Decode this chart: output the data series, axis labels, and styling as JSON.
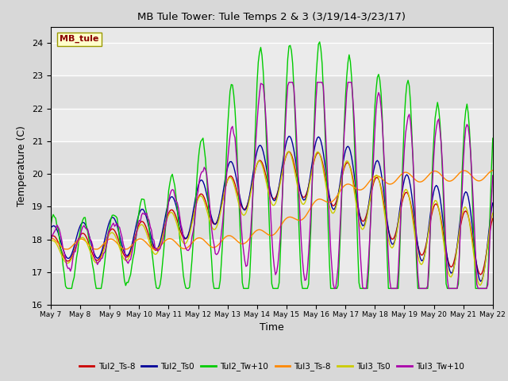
{
  "title": "MB Tule Tower: Tule Temps 2 & 3 (3/19/14-3/23/17)",
  "xlabel": "Time",
  "ylabel": "Temperature (C)",
  "ylim": [
    16.0,
    24.5
  ],
  "yticks": [
    16.0,
    17.0,
    18.0,
    19.0,
    20.0,
    21.0,
    22.0,
    23.0,
    24.0
  ],
  "xlim": [
    0,
    360
  ],
  "plot_bg": "#e8e8e8",
  "fig_bg": "#d8d8d8",
  "legend_label": "MB_tule",
  "series_colors": {
    "Tul2_Ts-8": "#cc0000",
    "Tul2_Ts0": "#000099",
    "Tul2_Tw+10": "#00cc00",
    "Tul3_Ts-8": "#ff8800",
    "Tul3_Ts0": "#cccc00",
    "Tul3_Tw+10": "#aa00aa"
  },
  "xtick_labels": [
    "May 7",
    "May 8",
    "May 9",
    "May 10",
    "May 11",
    "May 12",
    "May 13",
    "May 14",
    "May 15",
    "May 16",
    "May 17",
    "May 18",
    "May 19",
    "May 20",
    "May 21",
    "May 22"
  ],
  "xtick_positions": [
    0,
    24,
    48,
    72,
    96,
    120,
    144,
    168,
    192,
    216,
    240,
    264,
    288,
    312,
    336,
    360
  ]
}
